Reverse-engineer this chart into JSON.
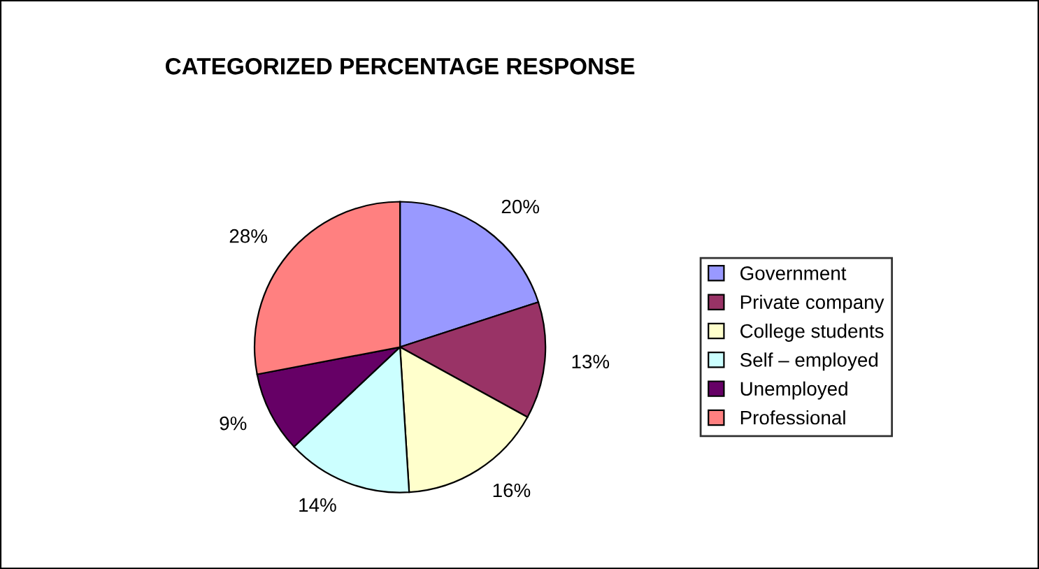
{
  "chart_data": {
    "type": "pie",
    "title": "CATEGORIZED PERCENTAGE RESPONSE",
    "categories": [
      "Government",
      "Private company",
      "College students",
      "Self – employed",
      "Unemployed",
      "Professional"
    ],
    "values": [
      20,
      13,
      16,
      14,
      9,
      28
    ],
    "value_labels": [
      "20%",
      "13%",
      "16%",
      "14%",
      "9%",
      "28%"
    ],
    "colors": [
      "#9999ff",
      "#993366",
      "#ffffcc",
      "#ccffff",
      "#660066",
      "#ff8080"
    ],
    "legend": "right"
  }
}
